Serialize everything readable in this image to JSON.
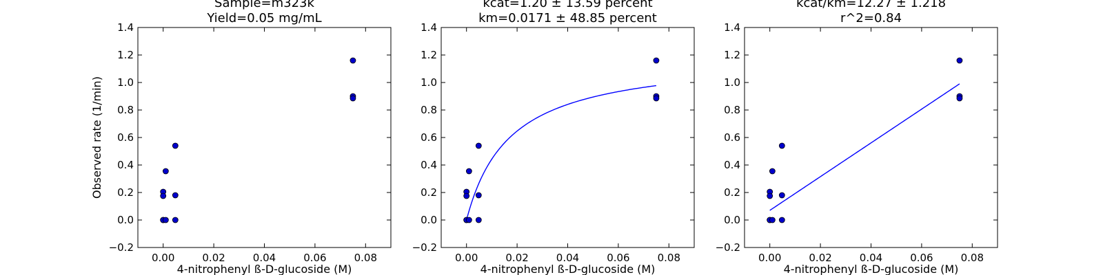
{
  "chart_data": [
    {
      "type": "scatter",
      "title_lines": [
        "Sample=m323k",
        "Yield=0.05 mg/mL"
      ],
      "xlabel": "4-nitrophenyl ß-D-glucoside (M)",
      "ylabel": "Observed rate (1/min)",
      "xlim": [
        -0.01,
        0.09
      ],
      "ylim": [
        -0.2,
        1.4
      ],
      "xticks": [
        "0.00",
        "0.02",
        "0.04",
        "0.06",
        "0.08"
      ],
      "yticks": [
        "−0.2",
        "0.0",
        "0.2",
        "0.4",
        "0.6",
        "0.8",
        "1.0",
        "1.2",
        "1.4"
      ],
      "points": [
        [
          0.0,
          0.0
        ],
        [
          0.0,
          0.0
        ],
        [
          0.001,
          0.0
        ],
        [
          0.0,
          0.205
        ],
        [
          0.0,
          0.175
        ],
        [
          0.001,
          0.355
        ],
        [
          0.0048,
          0.0
        ],
        [
          0.0048,
          0.18
        ],
        [
          0.0048,
          0.54
        ],
        [
          0.075,
          1.16
        ],
        [
          0.075,
          0.9
        ],
        [
          0.075,
          0.885
        ]
      ],
      "curve": null,
      "marker_color": "#0000cc"
    },
    {
      "type": "scatter",
      "title_lines": [
        "kcat=1.20 ± 13.59 percent",
        "km=0.0171 ± 48.85 percent"
      ],
      "xlabel": "4-nitrophenyl ß-D-glucoside (M)",
      "ylabel": "",
      "xlim": [
        -0.01,
        0.09
      ],
      "ylim": [
        -0.2,
        1.4
      ],
      "xticks": [
        "0.00",
        "0.02",
        "0.04",
        "0.06",
        "0.08"
      ],
      "yticks": [
        "−0.2",
        "0.0",
        "0.2",
        "0.4",
        "0.6",
        "0.8",
        "1.0",
        "1.2",
        "1.4"
      ],
      "points": [
        [
          0.0,
          0.0
        ],
        [
          0.0,
          0.0
        ],
        [
          0.001,
          0.0
        ],
        [
          0.0,
          0.205
        ],
        [
          0.0,
          0.175
        ],
        [
          0.001,
          0.355
        ],
        [
          0.0048,
          0.0
        ],
        [
          0.0048,
          0.18
        ],
        [
          0.0048,
          0.54
        ],
        [
          0.075,
          1.16
        ],
        [
          0.075,
          0.9
        ],
        [
          0.075,
          0.885
        ]
      ],
      "curve": {
        "kind": "michaelis-menten",
        "vmax": 1.2,
        "km": 0.0171,
        "x_range": [
          0.0,
          0.075
        ]
      },
      "line_color": "#0000ff",
      "marker_color": "#0000cc"
    },
    {
      "type": "scatter",
      "title_lines": [
        "kcat/km=12.27 ± 1.218",
        "r^2=0.84"
      ],
      "xlabel": "4-nitrophenyl ß-D-glucoside (M)",
      "ylabel": "",
      "xlim": [
        -0.01,
        0.09
      ],
      "ylim": [
        -0.2,
        1.4
      ],
      "xticks": [
        "0.00",
        "0.02",
        "0.04",
        "0.06",
        "0.08"
      ],
      "yticks": [
        "−0.2",
        "0.0",
        "0.2",
        "0.4",
        "0.6",
        "0.8",
        "1.0",
        "1.2",
        "1.4"
      ],
      "points": [
        [
          0.0,
          0.0
        ],
        [
          0.0,
          0.0
        ],
        [
          0.001,
          0.0
        ],
        [
          0.0,
          0.205
        ],
        [
          0.0,
          0.175
        ],
        [
          0.001,
          0.355
        ],
        [
          0.0048,
          0.0
        ],
        [
          0.0048,
          0.18
        ],
        [
          0.0048,
          0.54
        ],
        [
          0.075,
          1.16
        ],
        [
          0.075,
          0.9
        ],
        [
          0.075,
          0.885
        ]
      ],
      "curve": {
        "kind": "linear",
        "slope": 12.27,
        "intercept": 0.07,
        "x_range": [
          0.0,
          0.075
        ]
      },
      "line_color": "#0000ff",
      "marker_color": "#0000cc"
    }
  ]
}
